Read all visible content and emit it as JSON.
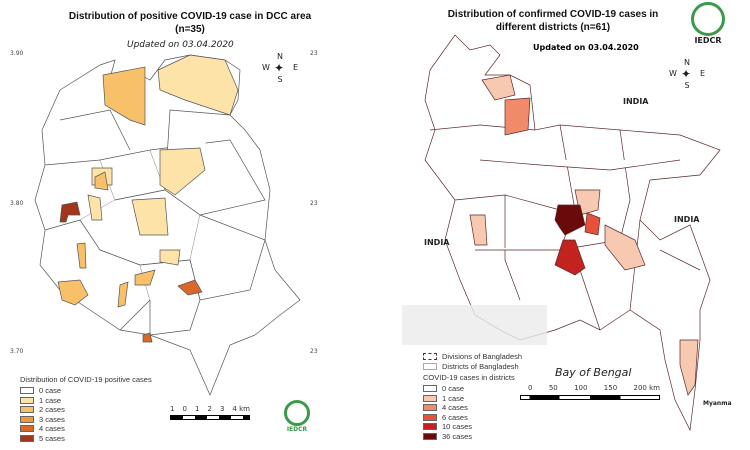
{
  "left_map": {
    "title_line1": "Distribution of positive COVID-19 case  in DCC area",
    "title_line2": "(n=35)",
    "updated": "Updated on 03.04.2020",
    "lat_ticks": [
      "3.90",
      "3.80",
      "3.70"
    ],
    "lon_ticks": [
      "23",
      "23",
      "23"
    ],
    "compass": {
      "n": "N",
      "s": "S",
      "e": "E",
      "w": "W"
    },
    "legend": {
      "title": "Distribution of COVID-19 positive cases",
      "items": [
        {
          "label": "0 case",
          "color": "#ffffff"
        },
        {
          "label": "1 case",
          "color": "#fde3a7"
        },
        {
          "label": "2 cases",
          "color": "#f8c068"
        },
        {
          "label": "3 cases",
          "color": "#ef9a3a"
        },
        {
          "label": "4 cases",
          "color": "#d8692a"
        },
        {
          "label": "5 cases",
          "color": "#a3361a"
        }
      ]
    },
    "scale_labels": [
      "1",
      "0",
      "1",
      "2",
      "3",
      "4 km"
    ],
    "logo_text": "IEDCR"
  },
  "right_map": {
    "title_line1": "Distribution of confirmed COVID-19 cases in",
    "title_line2": "different districts (n=61)",
    "updated": "Updated on 03.04.2020",
    "logo_text": "IEDCR",
    "compass": {
      "n": "N",
      "s": "S",
      "e": "E",
      "w": "W"
    },
    "labels": {
      "india_north": "INDIA",
      "india_east": "INDIA",
      "india_west": "INDIA",
      "bay": "Bay of Bengal",
      "myanmar": "Myanma"
    },
    "legend": {
      "divisions": "Divisions of Bangladesh",
      "districts": "Districts of Bangladesh",
      "title": "COVID-19 cases in districts",
      "items": [
        {
          "label": "0 case",
          "color": "#ffffff"
        },
        {
          "label": "1 case",
          "color": "#f6c9b0"
        },
        {
          "label": "4 cases",
          "color": "#f08a68"
        },
        {
          "label": "6 cases",
          "color": "#e5513a"
        },
        {
          "label": "10 cases",
          "color": "#c2231e"
        },
        {
          "label": "36 cases",
          "color": "#6b0a0a"
        }
      ]
    },
    "scale_labels": [
      "0",
      "50",
      "100",
      "150",
      "200 km"
    ]
  }
}
